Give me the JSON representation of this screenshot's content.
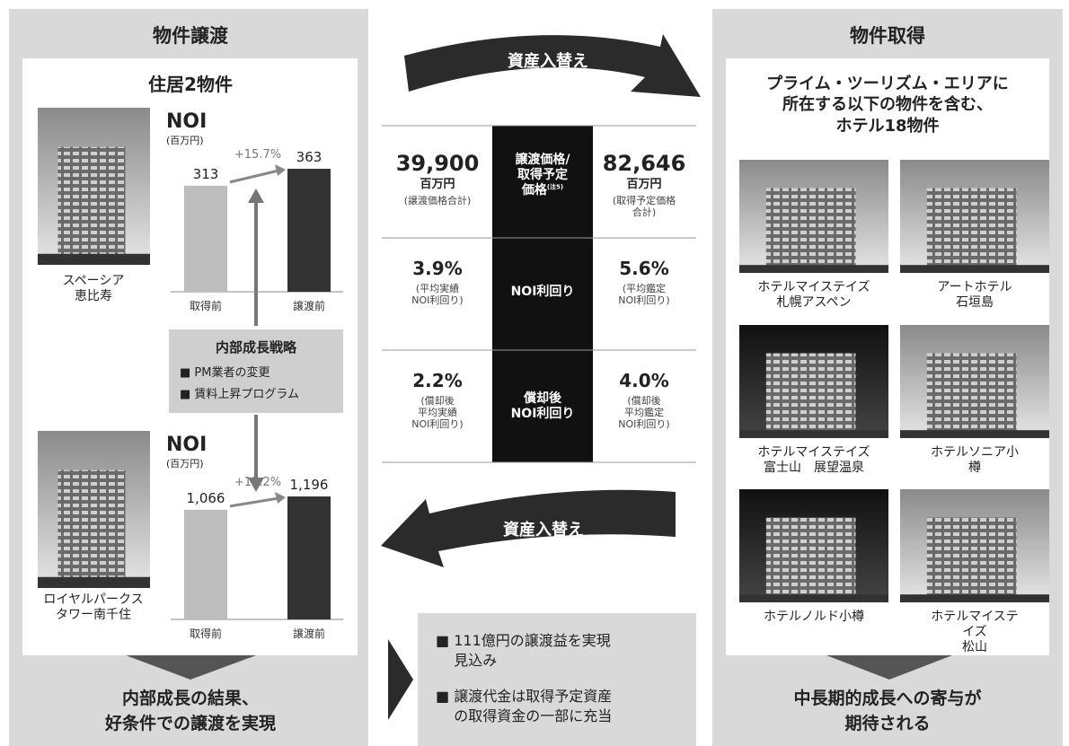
{
  "disposition": {
    "title": "物件譲渡",
    "subtitle": "住居2物件",
    "properties": [
      {
        "name": "スペーシア\n恵比寿",
        "noi": {
          "label": "NOI",
          "unit": "(百万円)",
          "categories": [
            "取得前",
            "譲渡前"
          ],
          "values": [
            313,
            363
          ],
          "change": "+15.7%"
        }
      },
      {
        "name": "ロイヤルパークス\nタワー南千住",
        "noi": {
          "label": "NOI",
          "unit": "(百万円)",
          "categories": [
            "取得前",
            "譲渡前"
          ],
          "values": [
            1066,
            1196
          ],
          "value_labels": [
            "1,066",
            "1,196"
          ],
          "change": "+12.2%"
        }
      }
    ],
    "strategy": {
      "title": "内部成長戦略",
      "items": [
        "PM業者の変更",
        "賃料上昇プログラム"
      ]
    },
    "result": "内部成長の結果、\n好条件での譲渡を実現"
  },
  "swap_top": "資産入替え",
  "swap_bottom": "資産入替え",
  "comparison": {
    "rows": [
      {
        "left": {
          "value": "39,900",
          "unit": "百万円",
          "note": "(譲渡価格合計)"
        },
        "center": "譲渡価格/\n取得予定\n価格",
        "center_note": "(注5)",
        "right": {
          "value": "82,646",
          "unit": "百万円",
          "note": "(取得予定価格\n合計)"
        }
      },
      {
        "left": {
          "value": "3.9%",
          "note": "(平均実績\nNOI利回り)"
        },
        "center": "NOI利回り",
        "right": {
          "value": "5.6%",
          "note": "(平均鑑定\nNOI利回り)"
        }
      },
      {
        "left": {
          "value": "2.2%",
          "note": "(償却後\n平均実績\nNOI利回り)"
        },
        "center": "償却後\nNOI利回り",
        "right": {
          "value": "4.0%",
          "note": "(償却後\n平均鑑定\nNOI利回り)"
        }
      }
    ]
  },
  "summary": [
    "111億円の譲渡益を実現\n見込み",
    "譲渡代金は取得予定資産\nの取得資金の一部に充当"
  ],
  "acquisition": {
    "title": "物件取得",
    "heading": "プライム・ツーリズム・エリアに\n所在する以下の物件を含む、\nホテル18物件",
    "hotels": [
      "ホテルマイステイズ\n札幌アスペン",
      "アートホテル\n石垣島",
      "ホテルマイステイズ\n富士山　展望温泉",
      "ホテルソニア小樽",
      "ホテルノルド小樽",
      "ホテルマイステイズ\n松山"
    ],
    "result": "中長期的成長への寄与が\n期待される"
  }
}
